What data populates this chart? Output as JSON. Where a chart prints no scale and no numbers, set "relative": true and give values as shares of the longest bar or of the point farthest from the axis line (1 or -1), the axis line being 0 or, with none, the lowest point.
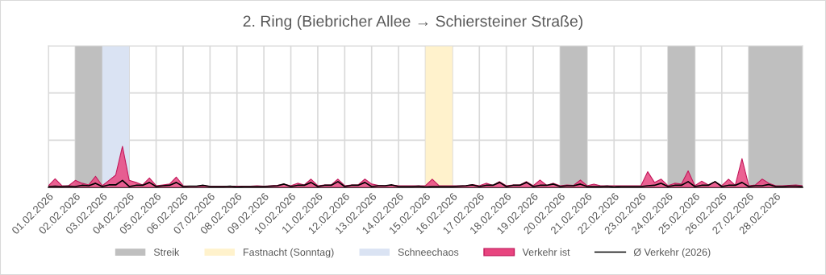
{
  "chart_data": {
    "type": "area",
    "title": "2. Ring (Biebricher Allee → Schiersteiner Straße)",
    "relative": true,
    "grid": true,
    "legend": "bottom",
    "tick_labels": "x",
    "x": [
      "2026-02-01T00:00",
      "2026-02-01T06:00",
      "2026-02-01T12:00",
      "2026-02-01T18:00",
      "2026-02-02T00:00",
      "2026-02-02T06:00",
      "2026-02-02T12:00",
      "2026-02-02T18:00",
      "2026-02-03T00:00",
      "2026-02-03T06:00",
      "2026-02-03T12:00",
      "2026-02-03T18:00",
      "2026-02-04T00:00",
      "2026-02-04T06:00",
      "2026-02-04T12:00",
      "2026-02-04T18:00",
      "2026-02-05T00:00",
      "2026-02-05T06:00",
      "2026-02-05T12:00",
      "2026-02-05T18:00",
      "2026-02-06T00:00",
      "2026-02-06T06:00",
      "2026-02-06T12:00",
      "2026-02-06T18:00",
      "2026-02-07T00:00",
      "2026-02-07T06:00",
      "2026-02-07T12:00",
      "2026-02-07T18:00",
      "2026-02-08T00:00",
      "2026-02-08T06:00",
      "2026-02-08T12:00",
      "2026-02-08T18:00",
      "2026-02-09T00:00",
      "2026-02-09T06:00",
      "2026-02-09T12:00",
      "2026-02-09T18:00",
      "2026-02-10T00:00",
      "2026-02-10T06:00",
      "2026-02-10T12:00",
      "2026-02-10T18:00",
      "2026-02-11T00:00",
      "2026-02-11T06:00",
      "2026-02-11T12:00",
      "2026-02-11T18:00",
      "2026-02-12T00:00",
      "2026-02-12T06:00",
      "2026-02-12T12:00",
      "2026-02-12T18:00",
      "2026-02-13T00:00",
      "2026-02-13T06:00",
      "2026-02-13T12:00",
      "2026-02-13T18:00",
      "2026-02-14T00:00",
      "2026-02-14T06:00",
      "2026-02-14T12:00",
      "2026-02-14T18:00",
      "2026-02-15T00:00",
      "2026-02-15T06:00",
      "2026-02-15T12:00",
      "2026-02-15T18:00",
      "2026-02-16T00:00",
      "2026-02-16T06:00",
      "2026-02-16T12:00",
      "2026-02-16T18:00",
      "2026-02-17T00:00",
      "2026-02-17T06:00",
      "2026-02-17T12:00",
      "2026-02-17T18:00",
      "2026-02-18T00:00",
      "2026-02-18T06:00",
      "2026-02-18T12:00",
      "2026-02-18T18:00",
      "2026-02-19T00:00",
      "2026-02-19T06:00",
      "2026-02-19T12:00",
      "2026-02-19T18:00",
      "2026-02-20T00:00",
      "2026-02-20T06:00",
      "2026-02-20T12:00",
      "2026-02-20T18:00",
      "2026-02-21T00:00",
      "2026-02-21T06:00",
      "2026-02-21T12:00",
      "2026-02-21T18:00",
      "2026-02-22T00:00",
      "2026-02-22T06:00",
      "2026-02-22T12:00",
      "2026-02-22T18:00",
      "2026-02-23T00:00",
      "2026-02-23T06:00",
      "2026-02-23T12:00",
      "2026-02-23T18:00",
      "2026-02-24T00:00",
      "2026-02-24T06:00",
      "2026-02-24T12:00",
      "2026-02-24T18:00",
      "2026-02-25T00:00",
      "2026-02-25T06:00",
      "2026-02-25T12:00",
      "2026-02-25T18:00",
      "2026-02-26T00:00",
      "2026-02-26T06:00",
      "2026-02-26T12:00",
      "2026-02-26T18:00",
      "2026-02-27T00:00",
      "2026-02-27T06:00",
      "2026-02-27T12:00",
      "2026-02-27T18:00",
      "2026-02-28T00:00",
      "2026-02-28T06:00",
      "2026-02-28T12:00",
      "2026-02-28T18:00",
      "2026-03-01T00:00"
    ],
    "xlim": [
      "2026-02-01",
      "2026-03-01"
    ],
    "xticks": [
      {
        "value": "2026-02-01",
        "label": "01.02.2026"
      },
      {
        "value": "2026-02-02",
        "label": "02.02.2026"
      },
      {
        "value": "2026-02-03",
        "label": "03.02.2026"
      },
      {
        "value": "2026-02-04",
        "label": "04.02.2026"
      },
      {
        "value": "2026-02-05",
        "label": "05.02.2026"
      },
      {
        "value": "2026-02-06",
        "label": "06.02.2026"
      },
      {
        "value": "2026-02-07",
        "label": "07.02.2026"
      },
      {
        "value": "2026-02-08",
        "label": "08.02.2026"
      },
      {
        "value": "2026-02-09",
        "label": "09.02.2026"
      },
      {
        "value": "2026-02-10",
        "label": "10.02.2026"
      },
      {
        "value": "2026-02-11",
        "label": "11.02.2026"
      },
      {
        "value": "2026-02-12",
        "label": "12.02.2026"
      },
      {
        "value": "2026-02-13",
        "label": "13.02.2026"
      },
      {
        "value": "2026-02-14",
        "label": "14.02.2026"
      },
      {
        "value": "2026-02-15",
        "label": "15.02.2026"
      },
      {
        "value": "2026-02-16",
        "label": "16.02.2026"
      },
      {
        "value": "2026-02-17",
        "label": "17.02.2026"
      },
      {
        "value": "2026-02-18",
        "label": "18.02.2026"
      },
      {
        "value": "2026-02-19",
        "label": "19.02.2026"
      },
      {
        "value": "2026-02-20",
        "label": "20.02.2026"
      },
      {
        "value": "2026-02-21",
        "label": "21.02.2026"
      },
      {
        "value": "2026-02-22",
        "label": "22.02.2026"
      },
      {
        "value": "2026-02-23",
        "label": "23.02.2026"
      },
      {
        "value": "2026-02-24",
        "label": "24.02.2026"
      },
      {
        "value": "2026-02-25",
        "label": "25.02.2026"
      },
      {
        "value": "2026-02-26",
        "label": "26.02.2026"
      },
      {
        "value": "2026-02-27",
        "label": "27.02.2026"
      },
      {
        "value": "2026-02-28",
        "label": "28.02.2026"
      }
    ],
    "bands": [
      {
        "axis": "x",
        "from": "2026-02-02",
        "to": "2026-02-03",
        "label": "Streik",
        "color": "#bfbfbf"
      },
      {
        "axis": "x",
        "from": "2026-02-20",
        "to": "2026-02-21",
        "color": "#bfbfbf"
      },
      {
        "axis": "x",
        "from": "2026-02-24",
        "to": "2026-02-25",
        "color": "#bfbfbf"
      },
      {
        "axis": "x",
        "from": "2026-02-27",
        "to": "2026-03-01",
        "color": "#bfbfbf"
      },
      {
        "axis": "x",
        "from": "2026-02-15",
        "to": "2026-02-16",
        "label": "Fastnacht (Sonntag)",
        "color": "#fff2cc"
      },
      {
        "axis": "x",
        "from": "2026-02-03",
        "to": "2026-02-04",
        "label": "Schneechaos",
        "color": "#dae3f3"
      }
    ],
    "series": [
      {
        "name": "Verkehr ist",
        "color": "#e8457f",
        "values": [
          0.04,
          0.21,
          0.04,
          0.04,
          0.17,
          0.1,
          0.06,
          0.27,
          0.04,
          0.17,
          0.3,
          1.0,
          0.17,
          0.12,
          0.06,
          0.23,
          0.04,
          0.06,
          0.08,
          0.25,
          0.04,
          0.03,
          0.03,
          0.04,
          0.03,
          0.03,
          0.03,
          0.03,
          0.03,
          0.03,
          0.03,
          0.04,
          0.03,
          0.04,
          0.05,
          0.08,
          0.04,
          0.1,
          0.06,
          0.2,
          0.04,
          0.06,
          0.06,
          0.2,
          0.04,
          0.06,
          0.06,
          0.2,
          0.08,
          0.05,
          0.04,
          0.06,
          0.04,
          0.04,
          0.04,
          0.04,
          0.04,
          0.2,
          0.04,
          0.04,
          0.04,
          0.04,
          0.04,
          0.07,
          0.04,
          0.1,
          0.05,
          0.14,
          0.04,
          0.06,
          0.06,
          0.14,
          0.04,
          0.18,
          0.05,
          0.1,
          0.04,
          0.06,
          0.05,
          0.18,
          0.04,
          0.08,
          0.04,
          0.04,
          0.04,
          0.04,
          0.04,
          0.04,
          0.04,
          0.38,
          0.12,
          0.2,
          0.04,
          0.1,
          0.08,
          0.4,
          0.04,
          0.15,
          0.06,
          0.14,
          0.04,
          0.2,
          0.05,
          0.7,
          0.04,
          0.06,
          0.2,
          0.1,
          0.04,
          0.04,
          0.05,
          0.06,
          0.04
        ]
      },
      {
        "name": "Ø Verkehr (2026)",
        "type": "line",
        "color": "#000000",
        "values": [
          0.02,
          0.03,
          0.02,
          0.03,
          0.02,
          0.05,
          0.04,
          0.1,
          0.02,
          0.06,
          0.06,
          0.17,
          0.02,
          0.05,
          0.05,
          0.12,
          0.02,
          0.04,
          0.05,
          0.12,
          0.02,
          0.03,
          0.03,
          0.05,
          0.02,
          0.02,
          0.02,
          0.03,
          0.01,
          0.02,
          0.02,
          0.02,
          0.02,
          0.03,
          0.04,
          0.08,
          0.02,
          0.05,
          0.05,
          0.12,
          0.02,
          0.05,
          0.05,
          0.14,
          0.02,
          0.05,
          0.05,
          0.12,
          0.02,
          0.04,
          0.04,
          0.06,
          0.02,
          0.02,
          0.02,
          0.03,
          0.01,
          0.02,
          0.02,
          0.02,
          0.02,
          0.03,
          0.04,
          0.06,
          0.02,
          0.05,
          0.05,
          0.12,
          0.02,
          0.05,
          0.05,
          0.12,
          0.02,
          0.05,
          0.05,
          0.08,
          0.02,
          0.04,
          0.04,
          0.08,
          0.02,
          0.02,
          0.02,
          0.03,
          0.01,
          0.02,
          0.02,
          0.02,
          0.02,
          0.04,
          0.05,
          0.1,
          0.02,
          0.05,
          0.05,
          0.14,
          0.02,
          0.05,
          0.05,
          0.14,
          0.02,
          0.05,
          0.05,
          0.12,
          0.02,
          0.04,
          0.04,
          0.07,
          0.02,
          0.02,
          0.03,
          0.03,
          0.02
        ]
      }
    ]
  }
}
